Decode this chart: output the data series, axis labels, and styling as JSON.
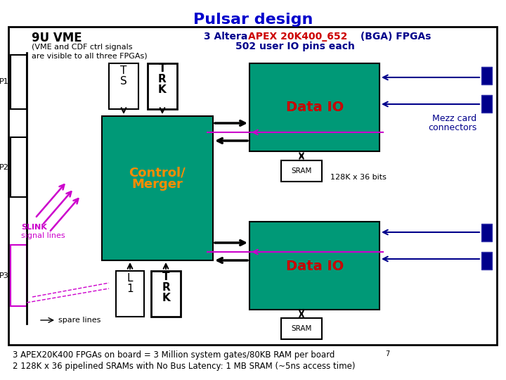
{
  "title": "Pulsar design",
  "title_color": "#0000CC",
  "bg_color": "#FFFFFF",
  "teal_color": "#009977",
  "blue_dark": "#00008B",
  "magenta_color": "#CC00CC",
  "black": "#000000",
  "red_color": "#CC0000",
  "orange_color": "#FF8C00",
  "footnote1": "3 APEX20K400 FPGAs on board = 3 Million system gates/80KB RAM per board ",
  "footnote1b": "7",
  "footnote2": "2 128K x 36 pipelined SRAMs with No Bus Latency: 1 MB SRAM (~5ns access time)"
}
